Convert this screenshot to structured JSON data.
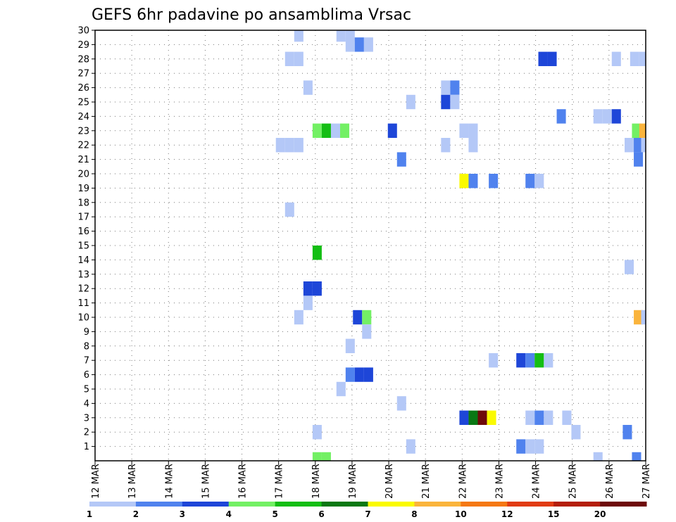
{
  "chart_data": {
    "type": "heatmap",
    "title": "GEFS 6hr padavine po ansamblima Vrsac",
    "x_tick_labels": [
      "12 MAR",
      "13 MAR",
      "14 MAR",
      "15 MAR",
      "16 MAR",
      "17 MAR",
      "18 MAR",
      "19 MAR",
      "20 MAR",
      "21 MAR",
      "22 MAR",
      "23 MAR",
      "24 MAR",
      "25 MAR",
      "26 MAR",
      "27 MAR"
    ],
    "y_tick_labels": [
      "1",
      "2",
      "3",
      "4",
      "5",
      "6",
      "7",
      "8",
      "9",
      "10",
      "11",
      "12",
      "13",
      "14",
      "15",
      "16",
      "17",
      "18",
      "19",
      "20",
      "21",
      "22",
      "23",
      "24",
      "25",
      "26",
      "27",
      "28",
      "29",
      "30"
    ],
    "xlim_days": [
      0,
      15
    ],
    "ylim_members": [
      0,
      30
    ],
    "grid": true,
    "colorbar": {
      "colors": [
        "#b4c8f7",
        "#5082ee",
        "#1e46d8",
        "#73f064",
        "#14be14",
        "#0a7814",
        "#fafa00",
        "#fab43c",
        "#f57814",
        "#e13c14",
        "#b41e0a",
        "#6e0a0a"
      ],
      "labels": [
        "1",
        "2",
        "3",
        "4",
        "5",
        "6",
        "7",
        "8",
        "10",
        "12",
        "15",
        "20"
      ]
    },
    "precip_cells": [
      {
        "m": 29.7,
        "t": [
          5.55
        ],
        "v": 1
      },
      {
        "m": 29.7,
        "t": [
          6.7,
          6.95
        ],
        "v": 1
      },
      {
        "m": 29,
        "t": [
          6.95
        ],
        "v": 1
      },
      {
        "m": 29,
        "t": [
          7.2
        ],
        "v": 2
      },
      {
        "m": 29,
        "t": [
          7.45
        ],
        "v": 1
      },
      {
        "m": 28,
        "t": [
          5.3,
          5.55
        ],
        "v": 1
      },
      {
        "m": 28,
        "t": [
          12.2,
          12.45
        ],
        "v": 3
      },
      {
        "m": 28,
        "t": [
          14.2
        ],
        "v": 1
      },
      {
        "m": 28,
        "t": [
          14.7,
          14.95
        ],
        "v": 1
      },
      {
        "m": 26,
        "t": [
          5.8
        ],
        "v": 1
      },
      {
        "m": 26,
        "t": [
          9.55
        ],
        "v": 1
      },
      {
        "m": 26,
        "t": [
          9.8
        ],
        "v": 2
      },
      {
        "m": 25,
        "t": [
          8.6
        ],
        "v": 1
      },
      {
        "m": 25,
        "t": [
          9.55
        ],
        "v": 3
      },
      {
        "m": 25,
        "t": [
          9.8
        ],
        "v": 1
      },
      {
        "m": 24,
        "t": [
          12.7
        ],
        "v": 2
      },
      {
        "m": 24,
        "t": [
          13.7,
          13.95
        ],
        "v": 1
      },
      {
        "m": 24,
        "t": [
          14.2
        ],
        "v": 3
      },
      {
        "m": 23,
        "t": [
          6.05
        ],
        "v": 4
      },
      {
        "m": 23,
        "t": [
          6.3
        ],
        "v": 5
      },
      {
        "m": 23,
        "t": [
          6.55
        ],
        "v": 1
      },
      {
        "m": 23,
        "t": [
          6.8
        ],
        "v": 4
      },
      {
        "m": 23,
        "t": [
          8.1
        ],
        "v": 3
      },
      {
        "m": 23,
        "t": [
          10.05,
          10.3
        ],
        "v": 1
      },
      {
        "m": 23,
        "t": [
          14.75
        ],
        "v": 4
      },
      {
        "m": 23,
        "t": [
          14.95
        ],
        "v": 8
      },
      {
        "m": 22,
        "t": [
          5.05,
          5.3,
          5.55
        ],
        "v": 1
      },
      {
        "m": 22,
        "t": [
          9.55
        ],
        "v": 1
      },
      {
        "m": 22,
        "t": [
          10.3
        ],
        "v": 1
      },
      {
        "m": 22,
        "t": [
          14.55
        ],
        "v": 1
      },
      {
        "m": 22,
        "t": [
          14.8
        ],
        "v": 2
      },
      {
        "m": 22,
        "t": [
          15.0
        ],
        "v": 1
      },
      {
        "m": 21,
        "t": [
          8.35
        ],
        "v": 2
      },
      {
        "m": 21,
        "t": [
          14.8
        ],
        "v": 2
      },
      {
        "m": 19.5,
        "t": [
          10.05
        ],
        "v": 7
      },
      {
        "m": 19.5,
        "t": [
          10.3
        ],
        "v": 2
      },
      {
        "m": 19.5,
        "t": [
          10.85
        ],
        "v": 2
      },
      {
        "m": 19.5,
        "t": [
          11.85
        ],
        "v": 2
      },
      {
        "m": 19.5,
        "t": [
          12.1
        ],
        "v": 1
      },
      {
        "m": 17.5,
        "t": [
          5.3
        ],
        "v": 1
      },
      {
        "m": 14.5,
        "t": [
          6.05
        ],
        "v": 5
      },
      {
        "m": 13.5,
        "t": [
          14.55
        ],
        "v": 1
      },
      {
        "m": 12,
        "t": [
          5.8,
          6.05
        ],
        "v": 3
      },
      {
        "m": 11,
        "t": [
          5.8
        ],
        "v": 1
      },
      {
        "m": 10,
        "t": [
          5.55
        ],
        "v": 1
      },
      {
        "m": 10,
        "t": [
          7.15
        ],
        "v": 3
      },
      {
        "m": 10,
        "t": [
          7.4
        ],
        "v": 4
      },
      {
        "m": 10,
        "t": [
          14.8
        ],
        "v": 8
      },
      {
        "m": 10,
        "t": [
          15.0
        ],
        "v": 1
      },
      {
        "m": 9,
        "t": [
          7.4
        ],
        "v": 1
      },
      {
        "m": 8,
        "t": [
          6.95
        ],
        "v": 1
      },
      {
        "m": 7,
        "t": [
          10.85
        ],
        "v": 1
      },
      {
        "m": 7,
        "t": [
          11.6
        ],
        "v": 3
      },
      {
        "m": 7,
        "t": [
          11.85
        ],
        "v": 2
      },
      {
        "m": 7,
        "t": [
          12.1
        ],
        "v": 5
      },
      {
        "m": 7,
        "t": [
          12.35
        ],
        "v": 1
      },
      {
        "m": 6,
        "t": [
          6.95
        ],
        "v": 2
      },
      {
        "m": 6,
        "t": [
          7.2,
          7.45
        ],
        "v": 3
      },
      {
        "m": 5,
        "t": [
          6.7
        ],
        "v": 1
      },
      {
        "m": 4,
        "t": [
          8.35
        ],
        "v": 1
      },
      {
        "m": 3,
        "t": [
          10.05
        ],
        "v": 3
      },
      {
        "m": 3,
        "t": [
          10.3
        ],
        "v": 6
      },
      {
        "m": 3,
        "t": [
          10.55
        ],
        "v": 12
      },
      {
        "m": 3,
        "t": [
          10.8
        ],
        "v": 7
      },
      {
        "m": 3,
        "t": [
          11.85
        ],
        "v": 1
      },
      {
        "m": 3,
        "t": [
          12.1
        ],
        "v": 2
      },
      {
        "m": 3,
        "t": [
          12.35
        ],
        "v": 1
      },
      {
        "m": 3,
        "t": [
          12.85
        ],
        "v": 1
      },
      {
        "m": 2,
        "t": [
          6.05
        ],
        "v": 1
      },
      {
        "m": 2,
        "t": [
          13.1
        ],
        "v": 1
      },
      {
        "m": 2,
        "t": [
          14.5
        ],
        "v": 2
      },
      {
        "m": 1,
        "t": [
          8.6
        ],
        "v": 1
      },
      {
        "m": 1,
        "t": [
          11.6
        ],
        "v": 2
      },
      {
        "m": 1,
        "t": [
          11.85,
          12.1
        ],
        "v": 1
      },
      {
        "m": 0.1,
        "t": [
          6.05,
          6.3
        ],
        "v": 4
      },
      {
        "m": 0.1,
        "t": [
          13.7
        ],
        "v": 1
      },
      {
        "m": 0.1,
        "t": [
          14.75
        ],
        "v": 2
      }
    ]
  }
}
